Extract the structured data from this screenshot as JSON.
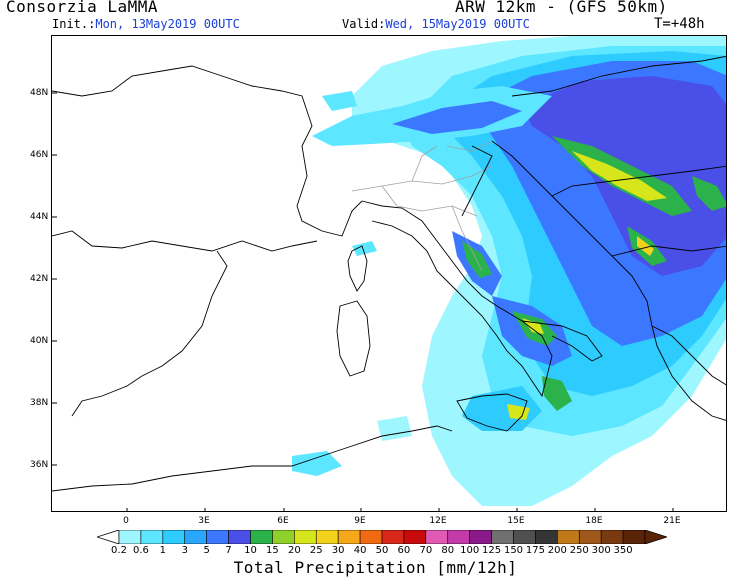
{
  "header": {
    "title": "Consorzia LaMMA",
    "model": "ARW 12km - (GFS 50km)",
    "init_label": "Init.:",
    "init_value": "Mon, 13May2019 00UTC",
    "valid_label": "Valid:",
    "valid_value": "Wed, 15May2019 00UTC",
    "timestep": "T=+48h"
  },
  "map": {
    "lat_labels": [
      "48N",
      "46N",
      "44N",
      "42N",
      "40N",
      "38N",
      "36N"
    ],
    "lon_labels": [
      "0",
      "3E",
      "6E",
      "9E",
      "12E",
      "15E",
      "18E",
      "21E"
    ],
    "colors": {
      "land_border": "#000000",
      "region_border": "#a0a0a0",
      "low_precip": "#9ef6ff",
      "light_precip": "#33ccff",
      "moderate_precip": "#3a6bff",
      "heavy_precip": "#2b2bd0"
    }
  },
  "colorbar": {
    "labels": [
      "0.2",
      "0.6",
      "1",
      "3",
      "5",
      "7",
      "10",
      "15",
      "20",
      "25",
      "30",
      "40",
      "50",
      "60",
      "70",
      "80",
      "100",
      "125",
      "150",
      "175",
      "200",
      "250",
      "300",
      "350"
    ],
    "colors": [
      "#9ef6ff",
      "#5ce6ff",
      "#2ecbff",
      "#2aa6ff",
      "#3c78ff",
      "#4a4fe8",
      "#2bb24a",
      "#8fd02a",
      "#d7e61a",
      "#f2d21b",
      "#f5a81a",
      "#f06a12",
      "#d8281a",
      "#c80a0a",
      "#e05ab4",
      "#c43aa8",
      "#8a1a8a",
      "#707070",
      "#505050",
      "#353535",
      "#c07818",
      "#a0581a",
      "#7a3a10",
      "#5a2408"
    ],
    "title": "Total Precipitation [mm/12h]"
  }
}
